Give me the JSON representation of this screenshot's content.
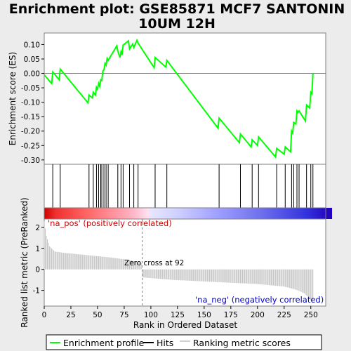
{
  "chart_data": {
    "type": "line",
    "title_line1": "Enrichment plot: GSE85871 MCF7 SANTONIN",
    "title_line2": "10UM 12H",
    "es_panel": {
      "ylabel": "Enrichment score (ES)",
      "ylim": [
        -0.315,
        0.14
      ],
      "yticks": [
        0.1,
        0.05,
        0.0,
        -0.05,
        -0.1,
        -0.15,
        -0.2,
        -0.25,
        -0.3
      ],
      "ytick_labels": [
        "0.10",
        "0.05",
        "0.00",
        "-0.05",
        "-0.10",
        "-0.15",
        "-0.20",
        "-0.25",
        "-0.30"
      ],
      "line_color": "#00ff00"
    },
    "rank_panel": {
      "ylabel": "Ranked list metric (PreRanked)",
      "xlabel": "Rank in Ordered Dataset",
      "ylim": [
        -1.75,
        2.4
      ],
      "yticks": [
        2,
        1,
        0,
        -1
      ],
      "ytick_labels": [
        "2",
        "1",
        "0",
        "-1"
      ],
      "pos_label": "'na_pos' (positively correlated)",
      "neg_label": "'na_neg' (negatively correlated)",
      "zero_cross_label": "Zero cross at 92",
      "zero_cross": 92,
      "pos_color": "#cc0000",
      "neg_color": "#0000cc"
    },
    "xlim": [
      0,
      264
    ],
    "xticks": [
      0,
      25,
      50,
      75,
      100,
      125,
      150,
      175,
      200,
      225,
      250
    ],
    "xtick_labels": [
      "0",
      "25",
      "50",
      "75",
      "100",
      "125",
      "150",
      "175",
      "200",
      "225",
      "250"
    ],
    "n_genes": 253,
    "hits": [
      8,
      15,
      42,
      46,
      49,
      51,
      53,
      54,
      56,
      58,
      60,
      69,
      72,
      74,
      80,
      84,
      88,
      104,
      115,
      164,
      184,
      195,
      201,
      218,
      226,
      232,
      234,
      237,
      239,
      246,
      250,
      252
    ],
    "es_profile": {
      "x": [
        0,
        7,
        8,
        14,
        15,
        41,
        42,
        45,
        46,
        48,
        49,
        50,
        51,
        52,
        53,
        54,
        55,
        56,
        57,
        58,
        59,
        60,
        68,
        69,
        71,
        72,
        73,
        74,
        79,
        80,
        83,
        84,
        87,
        88,
        103,
        104,
        114,
        115,
        163,
        164,
        183,
        184,
        194,
        195,
        200,
        201,
        217,
        218,
        225,
        226,
        231,
        232,
        233,
        234,
        236,
        237,
        238,
        239,
        245,
        246,
        249,
        250,
        251,
        252
      ],
      "y": [
        -0.005,
        -0.035,
        0.005,
        -0.022,
        0.015,
        -0.102,
        -0.075,
        -0.085,
        -0.065,
        -0.075,
        -0.048,
        -0.055,
        -0.035,
        -0.045,
        -0.022,
        -0.025,
        0.008,
        0.012,
        0.035,
        0.028,
        0.052,
        0.045,
        0.095,
        0.078,
        0.055,
        0.075,
        0.064,
        0.098,
        0.113,
        0.085,
        0.102,
        0.09,
        0.115,
        0.105,
        0.02,
        0.055,
        0.022,
        0.045,
        -0.19,
        -0.155,
        -0.24,
        -0.21,
        -0.255,
        -0.23,
        -0.25,
        -0.22,
        -0.29,
        -0.26,
        -0.28,
        -0.255,
        -0.272,
        -0.2,
        -0.207,
        -0.17,
        -0.175,
        -0.13,
        -0.135,
        -0.13,
        -0.165,
        -0.11,
        -0.12,
        -0.065,
        -0.07,
        0.0
      ]
    },
    "rank_metric": {
      "x": [
        0,
        2,
        5,
        10,
        20,
        40,
        60,
        80,
        91,
        92,
        120,
        160,
        200,
        225,
        235,
        240,
        244,
        248,
        252
      ],
      "y": [
        2.3,
        1.6,
        1.1,
        0.85,
        0.78,
        0.68,
        0.58,
        0.45,
        0.3,
        -0.38,
        -0.5,
        -0.6,
        -0.7,
        -0.82,
        -0.95,
        -1.05,
        -1.15,
        -1.35,
        -1.6
      ]
    }
  },
  "legend": {
    "items": [
      {
        "label": "Enrichment profile",
        "color": "#00ff00"
      },
      {
        "label": "Hits",
        "color": "#000000"
      },
      {
        "label": "Ranking metric scores",
        "color": "#c0c0c0"
      }
    ]
  }
}
